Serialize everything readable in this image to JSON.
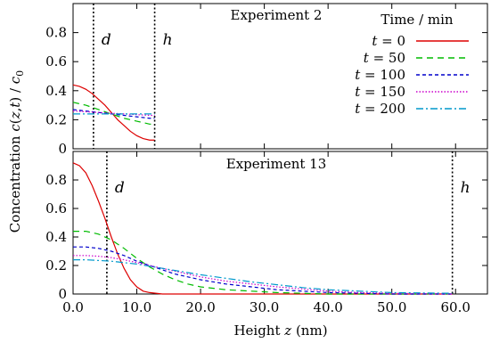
{
  "chart_data": [
    {
      "type": "line",
      "title": "Experiment 2",
      "xlim": [
        0,
        65
      ],
      "ylim": [
        0,
        1.0
      ],
      "y_ticks": [
        "0",
        "0.2",
        "0.4",
        "0.6",
        "0.8"
      ],
      "y_tick_values": [
        0,
        0.2,
        0.4,
        0.6,
        0.8
      ],
      "markers": [
        {
          "label": "d",
          "x": 3.2
        },
        {
          "label": "h",
          "x": 12.8
        }
      ],
      "series": [
        {
          "name": "t = 0",
          "color": "#dd0000",
          "dash": "solid",
          "x": [
            0,
            1,
            2,
            3,
            4,
            5,
            6,
            7,
            8,
            9,
            10,
            11,
            12,
            12.8
          ],
          "y": [
            0.44,
            0.43,
            0.41,
            0.38,
            0.34,
            0.3,
            0.25,
            0.2,
            0.16,
            0.12,
            0.09,
            0.07,
            0.06,
            0.06
          ]
        },
        {
          "name": "t = 50",
          "color": "#00bb00",
          "dash": "7,5",
          "x": [
            0,
            2,
            4,
            6,
            8,
            10,
            12,
            12.8
          ],
          "y": [
            0.32,
            0.3,
            0.27,
            0.24,
            0.21,
            0.19,
            0.17,
            0.17
          ]
        },
        {
          "name": "t = 100",
          "color": "#0000cc",
          "dash": "4,3",
          "x": [
            0,
            2,
            4,
            6,
            8,
            10,
            12,
            12.8
          ],
          "y": [
            0.27,
            0.26,
            0.25,
            0.24,
            0.23,
            0.22,
            0.21,
            0.21
          ]
        },
        {
          "name": "t = 150",
          "color": "#cc00cc",
          "dash": "1.5,2",
          "x": [
            0,
            2,
            4,
            6,
            8,
            10,
            12,
            12.8
          ],
          "y": [
            0.26,
            0.255,
            0.25,
            0.245,
            0.24,
            0.235,
            0.23,
            0.23
          ]
        },
        {
          "name": "t = 200",
          "color": "#0099cc",
          "dash": "8,3,2,3",
          "x": [
            0,
            2,
            4,
            6,
            8,
            10,
            12,
            12.8
          ],
          "y": [
            0.24,
            0.24,
            0.24,
            0.24,
            0.24,
            0.24,
            0.24,
            0.24
          ]
        }
      ],
      "legend": {
        "title": "Time / min",
        "placement": "top-right",
        "entries": [
          "t = 0",
          "t = 50",
          "t = 100",
          "t = 150",
          "t = 200"
        ]
      }
    },
    {
      "type": "line",
      "title": "Experiment 13",
      "xlim": [
        0,
        65
      ],
      "ylim": [
        0,
        1.0
      ],
      "x_ticks": [
        "0.0",
        "10.0",
        "20.0",
        "30.0",
        "40.0",
        "50.0",
        "60.0"
      ],
      "x_tick_values": [
        0,
        10,
        20,
        30,
        40,
        50,
        60
      ],
      "y_ticks": [
        "0",
        "0.2",
        "0.4",
        "0.6",
        "0.8"
      ],
      "y_tick_values": [
        0,
        0.2,
        0.4,
        0.6,
        0.8
      ],
      "markers": [
        {
          "label": "d",
          "x": 5.3
        },
        {
          "label": "h",
          "x": 59.5
        }
      ],
      "series": [
        {
          "name": "t = 0",
          "color": "#dd0000",
          "dash": "solid",
          "x": [
            0,
            1,
            2,
            3,
            4,
            5,
            6,
            7,
            8,
            9,
            10,
            11,
            12,
            14,
            16,
            20,
            30,
            59.5
          ],
          "y": [
            0.92,
            0.9,
            0.85,
            0.76,
            0.65,
            0.53,
            0.4,
            0.28,
            0.18,
            0.1,
            0.05,
            0.02,
            0.01,
            0.0,
            0.0,
            0.0,
            0.0,
            0.0
          ]
        },
        {
          "name": "t = 50",
          "color": "#00bb00",
          "dash": "7,5",
          "x": [
            0,
            2,
            4,
            6,
            8,
            10,
            12,
            14,
            16,
            18,
            20,
            24,
            28,
            32,
            36,
            40,
            45,
            59.5
          ],
          "y": [
            0.44,
            0.44,
            0.42,
            0.38,
            0.32,
            0.25,
            0.19,
            0.14,
            0.1,
            0.07,
            0.05,
            0.03,
            0.02,
            0.01,
            0.005,
            0.0,
            0.0,
            0.0
          ]
        },
        {
          "name": "t = 100",
          "color": "#0000cc",
          "dash": "4,3",
          "x": [
            0,
            2,
            4,
            6,
            8,
            10,
            12,
            14,
            16,
            18,
            20,
            24,
            28,
            32,
            36,
            40,
            45,
            50,
            59.5
          ],
          "y": [
            0.33,
            0.33,
            0.32,
            0.3,
            0.27,
            0.23,
            0.2,
            0.17,
            0.14,
            0.12,
            0.1,
            0.07,
            0.05,
            0.03,
            0.02,
            0.01,
            0.005,
            0.0,
            0.0
          ]
        },
        {
          "name": "t = 150",
          "color": "#cc00cc",
          "dash": "1.5,2",
          "x": [
            0,
            2,
            4,
            6,
            8,
            10,
            12,
            14,
            16,
            18,
            20,
            24,
            28,
            32,
            36,
            40,
            45,
            50,
            59.5
          ],
          "y": [
            0.27,
            0.27,
            0.265,
            0.255,
            0.24,
            0.22,
            0.2,
            0.18,
            0.16,
            0.14,
            0.12,
            0.09,
            0.07,
            0.05,
            0.035,
            0.02,
            0.01,
            0.005,
            0.0
          ]
        },
        {
          "name": "t = 200",
          "color": "#0099cc",
          "dash": "8,3,2,3",
          "x": [
            0,
            2,
            4,
            6,
            8,
            10,
            12,
            14,
            16,
            18,
            20,
            24,
            28,
            32,
            36,
            40,
            45,
            50,
            59.5
          ],
          "y": [
            0.24,
            0.24,
            0.235,
            0.23,
            0.22,
            0.21,
            0.195,
            0.18,
            0.165,
            0.15,
            0.135,
            0.11,
            0.085,
            0.065,
            0.045,
            0.03,
            0.02,
            0.01,
            0.005
          ]
        }
      ]
    }
  ],
  "figure": {
    "xlabel": "Height z (nm)",
    "ylabel": "Concentration c(z,t)/c0"
  }
}
